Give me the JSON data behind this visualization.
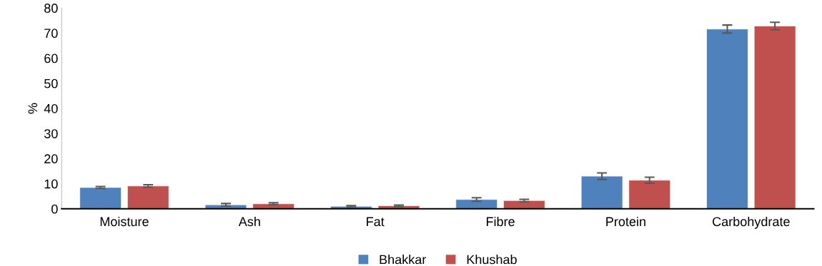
{
  "chart_data": {
    "type": "bar",
    "ylabel": "%",
    "categories": [
      "Moisture",
      "Ash",
      "Fat",
      "Fibre",
      "Protein",
      "Carbohydrate"
    ],
    "series": [
      {
        "name": "Bhakkar",
        "color": "#4f81bd",
        "values": [
          8.5,
          1.6,
          1.0,
          3.7,
          13.0,
          71.6
        ],
        "errors": [
          0.4,
          0.5,
          0.3,
          0.7,
          1.3,
          1.6
        ]
      },
      {
        "name": "Khushab",
        "color": "#c0504d",
        "values": [
          9.1,
          2.0,
          1.2,
          3.3,
          11.4,
          72.8
        ],
        "errors": [
          0.5,
          0.4,
          0.3,
          0.5,
          1.2,
          1.5
        ]
      }
    ],
    "ylim": [
      0,
      80
    ],
    "yticks": [
      0,
      10,
      20,
      30,
      40,
      50,
      60,
      70,
      80
    ],
    "grid": false,
    "legend": "bottom"
  }
}
